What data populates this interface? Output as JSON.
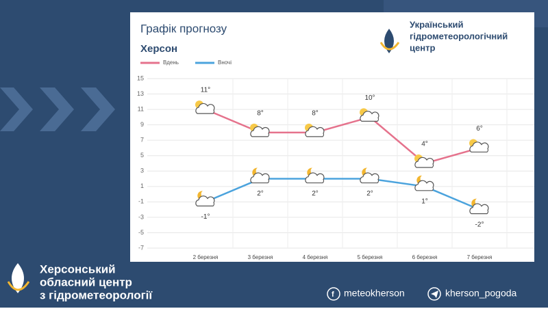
{
  "chart_data": {
    "type": "line",
    "title": "Графік прогнозу",
    "subtitle": "Херсон",
    "categories": [
      "2 березня",
      "3 березня",
      "4 березня",
      "5 березня",
      "6 березня",
      "7 березня"
    ],
    "series": [
      {
        "name": "Вдень",
        "color": "#e5728c",
        "values": [
          11,
          8,
          8,
          10,
          4,
          6
        ],
        "value_labels": [
          "11°",
          "8°",
          "8°",
          "10°",
          "4°",
          "6°"
        ]
      },
      {
        "name": "Вночі",
        "color": "#4ba3dd",
        "values": [
          -1,
          2,
          2,
          2,
          1,
          -2
        ],
        "value_labels": [
          "-1°",
          "2°",
          "2°",
          "2°",
          "1°",
          "-2°"
        ]
      }
    ],
    "ylim": [
      -7,
      15
    ],
    "yticks": [
      15,
      13,
      11,
      9,
      7,
      5,
      3,
      1,
      -1,
      -3,
      -5,
      -7
    ],
    "grid": true,
    "legend": "top-left"
  },
  "header": {
    "org_lines": [
      "Український",
      "гідрометеорологічний",
      "центр"
    ]
  },
  "footer": {
    "org_lines": [
      "Херсонський",
      "обласний центр",
      "з гідрометеорології"
    ],
    "facebook": "meteokherson",
    "telegram": "kherson_pogoda"
  }
}
